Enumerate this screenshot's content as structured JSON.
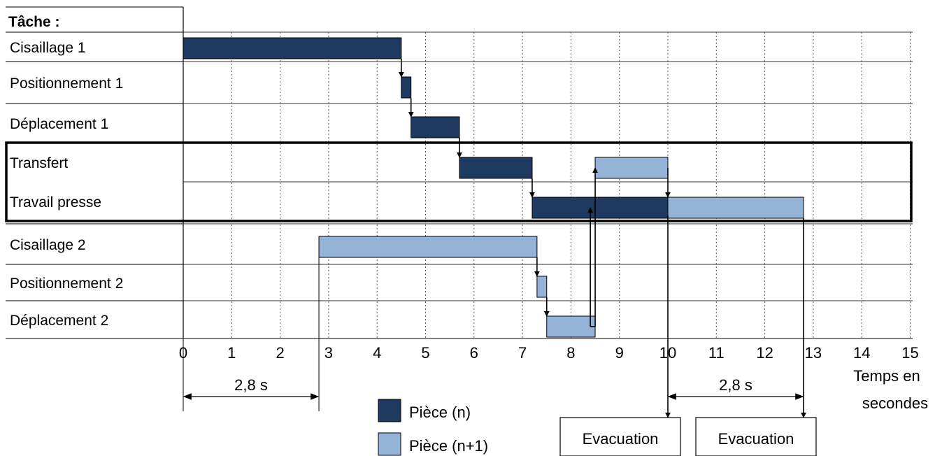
{
  "chart_data": {
    "type": "gantt",
    "header": "Tâche :",
    "xlabel_line1": "Temps en",
    "xlabel_line2": "secondes",
    "xlim": [
      0,
      15
    ],
    "ticks": [
      0,
      1,
      2,
      3,
      4,
      5,
      6,
      7,
      8,
      9,
      10,
      11,
      12,
      13,
      14,
      15
    ],
    "tasks": [
      "Cisaillage 1",
      "Positionnement 1",
      "Déplacement 1",
      "Transfert",
      "Travail presse",
      "Cisaillage 2",
      "Positionnement 2",
      "Déplacement 2"
    ],
    "highlighted_tasks": [
      3,
      4
    ],
    "colors": {
      "piece_n": "#1f3a60",
      "piece_n1": "#95b3d7"
    },
    "bars": [
      {
        "task": 0,
        "start": 0,
        "end": 4.5,
        "piece": "n"
      },
      {
        "task": 1,
        "start": 4.5,
        "end": 4.7,
        "piece": "n"
      },
      {
        "task": 2,
        "start": 4.7,
        "end": 5.7,
        "piece": "n"
      },
      {
        "task": 3,
        "start": 5.7,
        "end": 7.2,
        "piece": "n"
      },
      {
        "task": 4,
        "start": 7.2,
        "end": 10.0,
        "piece": "n"
      },
      {
        "task": 3,
        "start": 8.5,
        "end": 10.0,
        "piece": "n1"
      },
      {
        "task": 4,
        "start": 10.0,
        "end": 12.8,
        "piece": "n1"
      },
      {
        "task": 5,
        "start": 2.8,
        "end": 7.3,
        "piece": "n1"
      },
      {
        "task": 6,
        "start": 7.3,
        "end": 7.5,
        "piece": "n1"
      },
      {
        "task": 7,
        "start": 7.5,
        "end": 8.5,
        "piece": "n1"
      }
    ],
    "legend": [
      {
        "label": "Pièce (n)",
        "piece": "n"
      },
      {
        "label": "Pièce (n+1)",
        "piece": "n1"
      }
    ],
    "annotations": {
      "interval_left": {
        "from": 0,
        "to": 2.8,
        "label": "2,8 s"
      },
      "interval_right": {
        "from": 10.0,
        "to": 12.8,
        "label": "2,8 s"
      },
      "evacuation_boxes": [
        {
          "x": 10.0,
          "label": "Evacuation"
        },
        {
          "x": 12.8,
          "label": "Evacuation"
        }
      ]
    }
  }
}
